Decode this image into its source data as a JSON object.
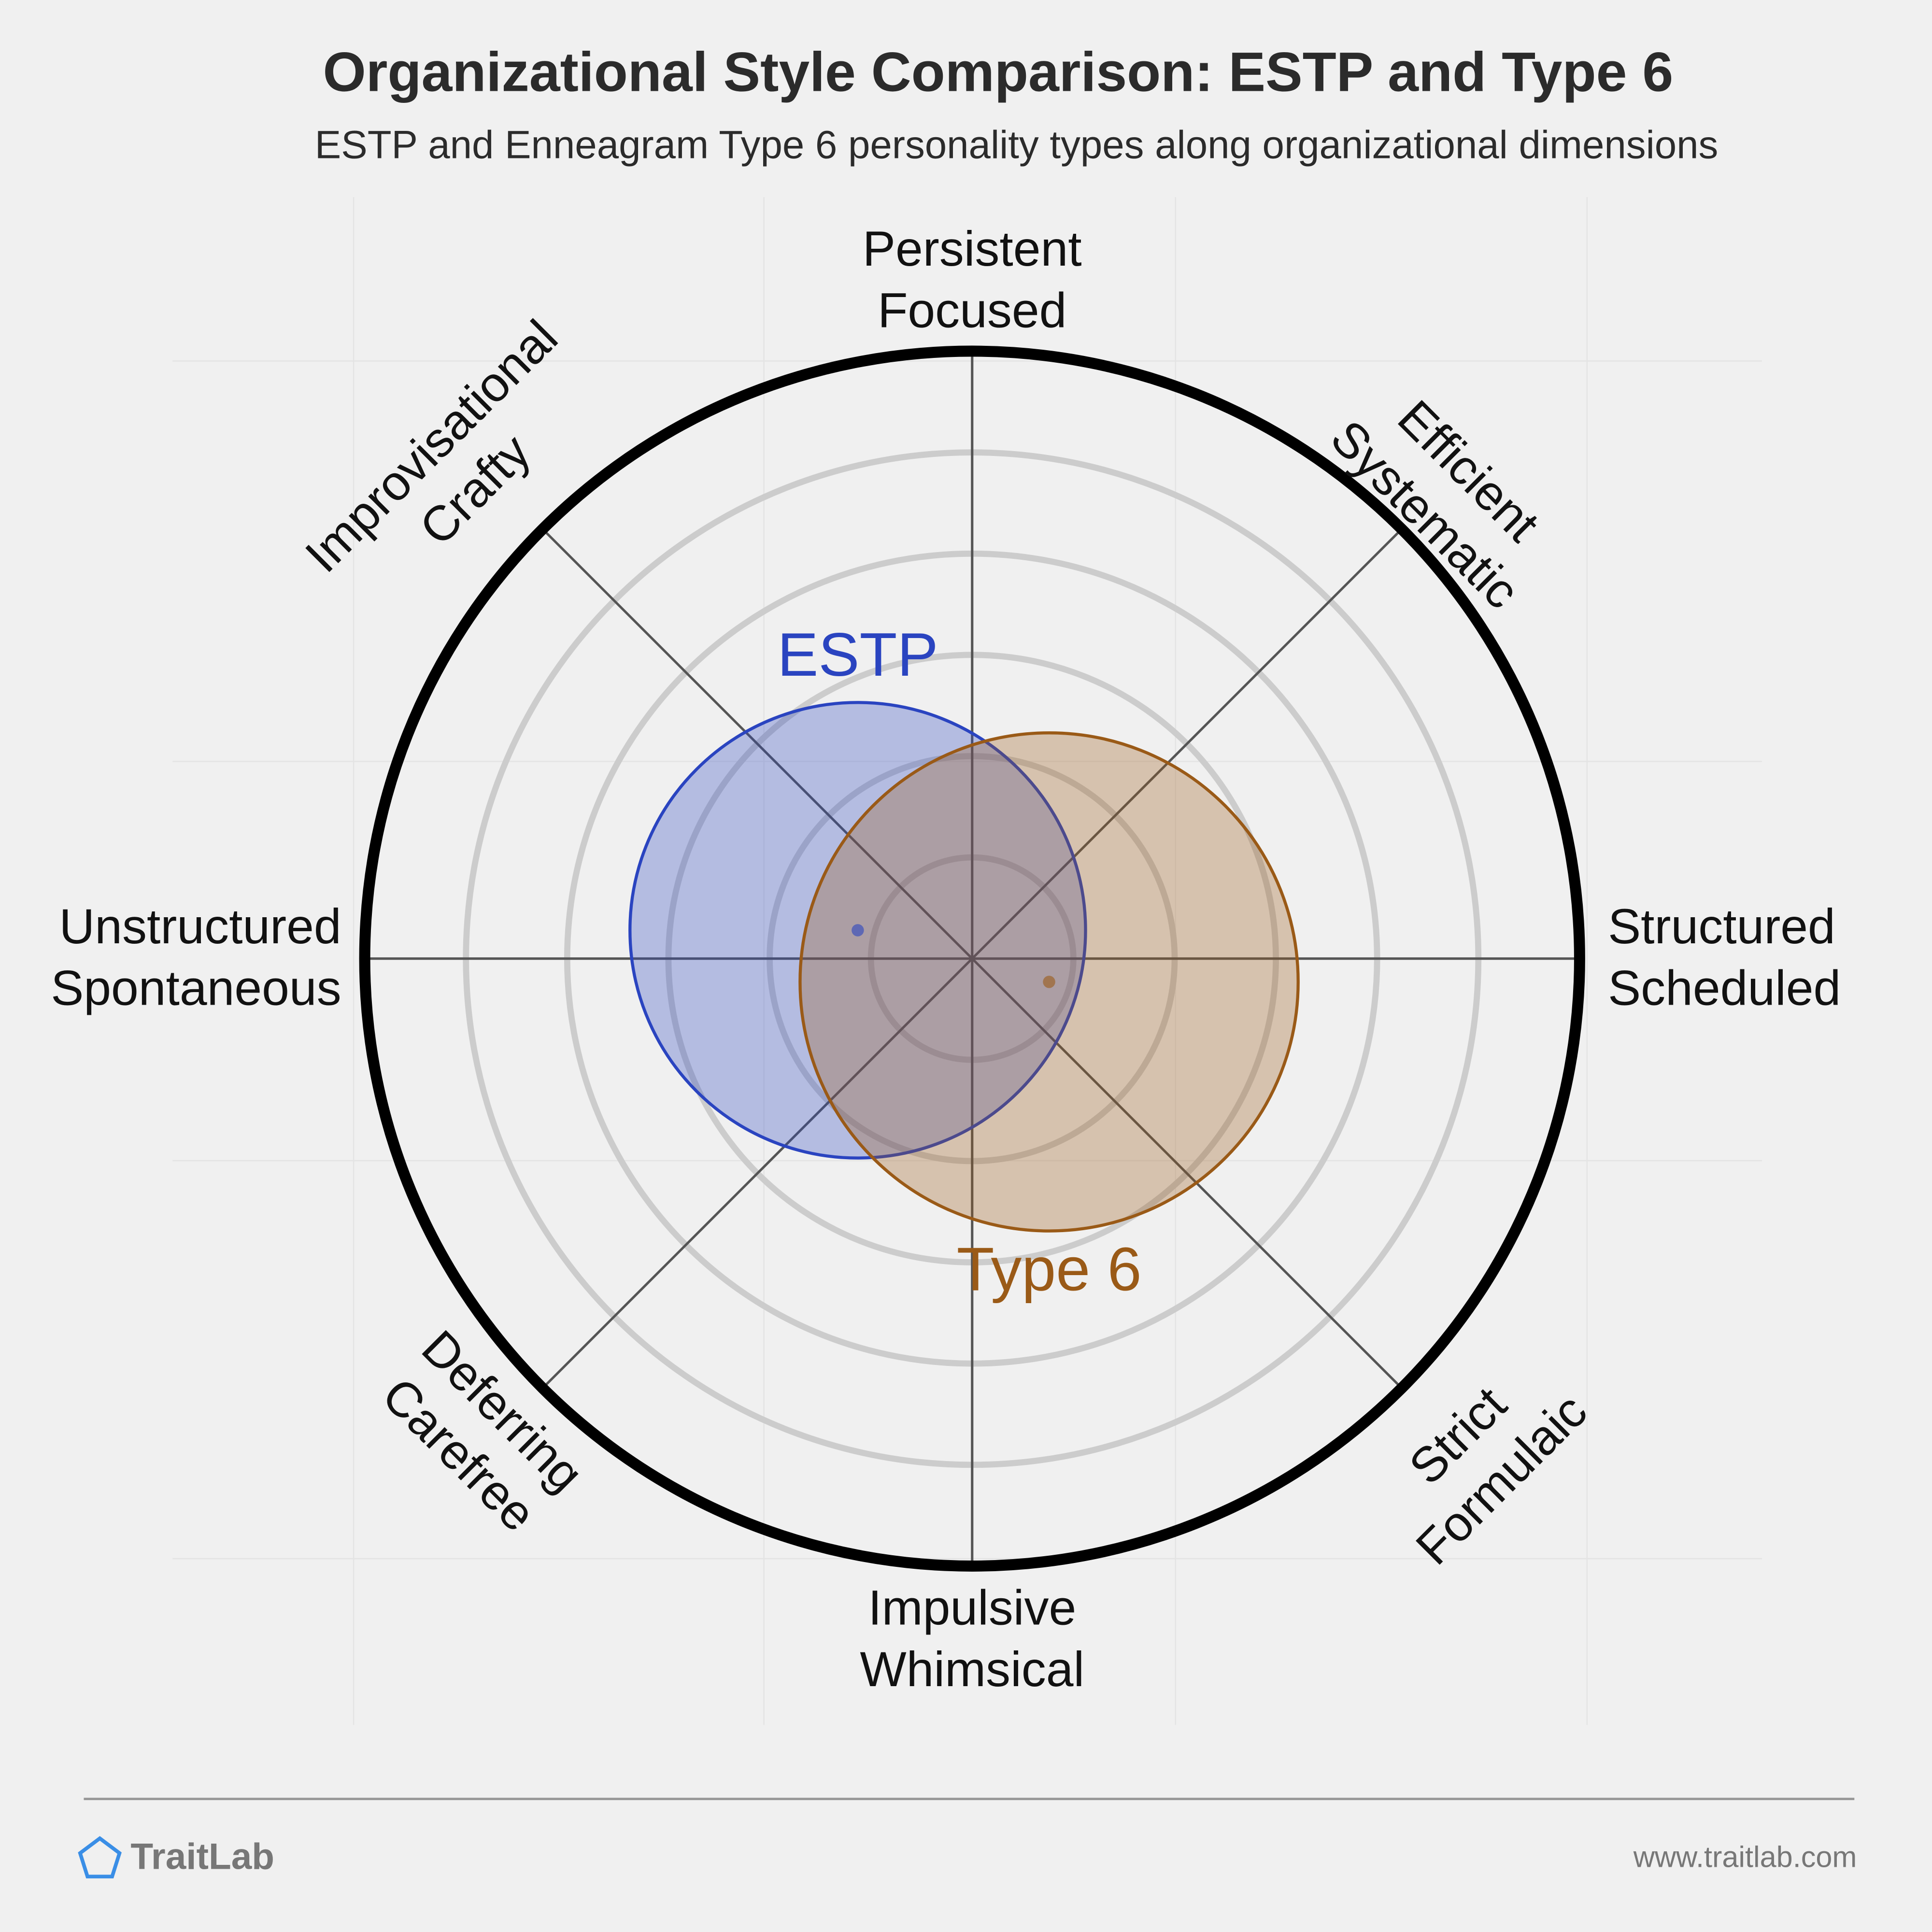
{
  "chart_data": {
    "type": "polar-overlap",
    "title": "Organizational Style Comparison: ESTP and Type 6",
    "subtitle": "ESTP and Enneagram Type 6 personality types along organizational dimensions",
    "axes": [
      [
        "Persistent",
        "Focused"
      ],
      [
        "Efficient",
        "Systematic"
      ],
      [
        "Structured",
        "Scheduled"
      ],
      [
        "Strict",
        "Formulaic"
      ],
      [
        "Impulsive",
        "Whimsical"
      ],
      [
        "Deferring",
        "Carefree"
      ],
      [
        "Unstructured",
        "Spontaneous"
      ],
      [
        "Improvisational",
        "Crafty"
      ]
    ],
    "xlim": [
      -6,
      6
    ],
    "ylim": [
      -6,
      6
    ],
    "rings": [
      1,
      2,
      3,
      4,
      5
    ],
    "series": [
      {
        "name": "ESTP",
        "color": "#2a44c0",
        "x": -1.13,
        "y": 0.28,
        "r": 2.25
      },
      {
        "name": "Type 6",
        "color": "#9a5a17",
        "x": 0.76,
        "y": -0.23,
        "r": 2.46
      }
    ]
  },
  "footer": {
    "brand": "TraitLab",
    "url": "www.traitlab.com"
  }
}
